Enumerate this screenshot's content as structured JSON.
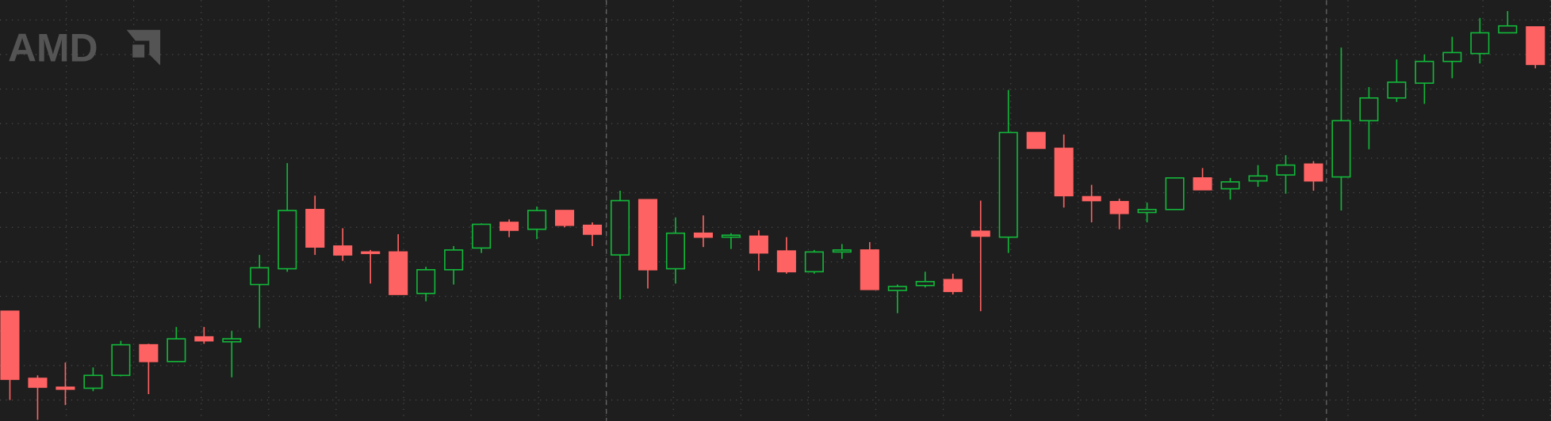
{
  "chart_data": {
    "type": "candlestick",
    "watermark": "AMD",
    "open": [
      111,
      43,
      34,
      33,
      46,
      77,
      60,
      85,
      80,
      138,
      154,
      214,
      177,
      171,
      171,
      129,
      153,
      175,
      201,
      194,
      213,
      198,
      168,
      224,
      154,
      190,
      186,
      187,
      172,
      151,
      171,
      173,
      132,
      137,
      143,
      192,
      186,
      292,
      276,
      227,
      222,
      211,
      214,
      246,
      235,
      243,
      249,
      260,
      247,
      304,
      327,
      342,
      364,
      372,
      393,
      399
    ],
    "high": [
      111,
      46,
      59,
      54,
      81,
      78,
      95,
      95,
      91,
      168,
      261,
      228,
      195,
      173,
      189,
      156,
      177,
      200,
      204,
      217,
      213,
      201,
      233,
      224,
      206,
      208,
      190,
      193,
      186,
      173,
      179,
      181,
      138,
      151,
      149,
      223,
      335,
      292,
      290,
      239,
      225,
      221,
      246,
      256,
      246,
      259,
      269,
      263,
      378,
      338,
      366,
      371,
      389,
      408,
      415,
      399
    ],
    "low": [
      21,
      1,
      16,
      30,
      45,
      27,
      60,
      78,
      44,
      94,
      151,
      168,
      162,
      139,
      128,
      121,
      138,
      170,
      186,
      184,
      196,
      177,
      123,
      134,
      139,
      176,
      174,
      152,
      149,
      149,
      164,
      133,
      109,
      135,
      128,
      111,
      170,
      276,
      216,
      201,
      194,
      201,
      214,
      234,
      224,
      237,
      230,
      233,
      213,
      275,
      323,
      321,
      347,
      362,
      393,
      357
    ],
    "close": [
      42,
      34,
      32,
      46,
      77,
      60,
      83,
      81,
      83,
      155,
      213,
      176,
      168,
      170,
      128,
      153,
      173,
      199,
      193,
      213,
      198,
      189,
      223,
      153,
      190,
      186,
      188,
      170,
      151,
      171,
      173,
      133,
      136,
      141,
      131,
      187,
      292,
      276,
      228,
      223,
      210,
      214,
      246,
      234,
      242,
      248,
      259,
      243,
      304,
      327,
      343,
      364,
      373,
      393,
      400,
      361
    ],
    "up_color": "#12b83a",
    "down_color": "#ff6262",
    "ylim": [
      0,
      426
    ],
    "grid": true
  }
}
